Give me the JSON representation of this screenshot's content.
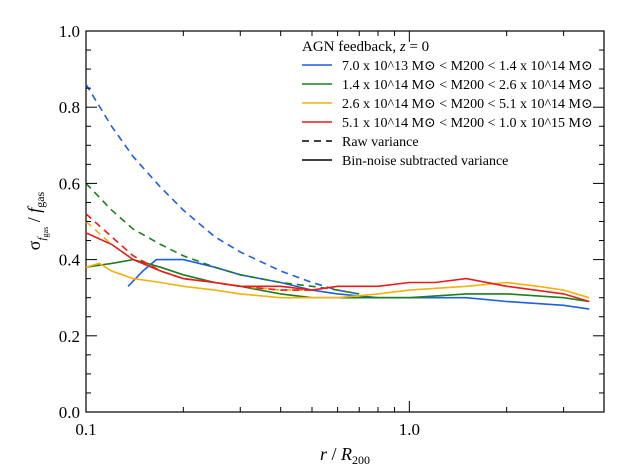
{
  "chart_data": {
    "type": "line",
    "xlabel": "r / R200",
    "ylabel": "σ f_gas / f_gas",
    "xscale": "log",
    "xlim": [
      0.1,
      4.0
    ],
    "ylim": [
      0.0,
      1.0
    ],
    "grid": false,
    "legend_position": "top-right",
    "x_ticks": [
      {
        "value": 0.1,
        "label": "0.1"
      },
      {
        "value": 1.0,
        "label": "1.0"
      }
    ],
    "y_ticks": [
      {
        "value": 0.0,
        "label": "0.0"
      },
      {
        "value": 0.2,
        "label": "0.2"
      },
      {
        "value": 0.4,
        "label": "0.4"
      },
      {
        "value": 0.6,
        "label": "0.6"
      },
      {
        "value": 0.8,
        "label": "0.8"
      },
      {
        "value": 1.0,
        "label": "1.0"
      }
    ],
    "legend_title": "AGN feedback, z = 0",
    "series": [
      {
        "name": "7.0 x 10^13 M⊙ < M200 < 1.4 x 10^14 M⊙",
        "color": "#1f5fe0",
        "dashed": {
          "x": [
            0.1,
            0.12,
            0.14,
            0.17,
            0.2,
            0.25,
            0.3,
            0.4,
            0.5,
            0.6,
            0.7
          ],
          "y": [
            0.86,
            0.75,
            0.67,
            0.59,
            0.53,
            0.46,
            0.42,
            0.37,
            0.34,
            0.32,
            0.31
          ]
        },
        "solid": {
          "x": [
            0.135,
            0.15,
            0.165,
            0.2,
            0.25,
            0.3,
            0.4,
            0.5,
            0.6,
            0.8,
            1.0,
            1.5,
            2.0,
            3.0,
            3.6
          ],
          "y": [
            0.33,
            0.37,
            0.4,
            0.4,
            0.38,
            0.36,
            0.34,
            0.32,
            0.31,
            0.3,
            0.3,
            0.3,
            0.29,
            0.28,
            0.27
          ]
        }
      },
      {
        "name": "1.4 x 10^14 M⊙ < M200 < 2.6 x 10^14 M⊙",
        "color": "#1e7d1e",
        "dashed": {
          "x": [
            0.1,
            0.12,
            0.14,
            0.17,
            0.2,
            0.25,
            0.3,
            0.4,
            0.5,
            0.6,
            0.7
          ],
          "y": [
            0.6,
            0.53,
            0.48,
            0.44,
            0.41,
            0.38,
            0.36,
            0.34,
            0.33,
            0.32,
            0.31
          ]
        },
        "solid": {
          "x": [
            0.1,
            0.12,
            0.14,
            0.17,
            0.2,
            0.25,
            0.3,
            0.4,
            0.5,
            0.6,
            0.8,
            1.0,
            1.5,
            2.0,
            3.0,
            3.6
          ],
          "y": [
            0.38,
            0.39,
            0.4,
            0.38,
            0.36,
            0.34,
            0.33,
            0.31,
            0.3,
            0.3,
            0.3,
            0.3,
            0.31,
            0.31,
            0.3,
            0.29
          ]
        }
      },
      {
        "name": "2.6 x 10^14 M⊙ < M200 < 5.1 x 10^14 M⊙",
        "color": "#f2b10d",
        "dashed": {
          "x": [
            0.1,
            0.12,
            0.14,
            0.17,
            0.2,
            0.25,
            0.3,
            0.4,
            0.5
          ],
          "y": [
            0.5,
            0.44,
            0.4,
            0.37,
            0.35,
            0.34,
            0.33,
            0.32,
            0.32
          ]
        },
        "solid": {
          "x": [
            0.1,
            0.11,
            0.12,
            0.14,
            0.17,
            0.2,
            0.25,
            0.3,
            0.4,
            0.5,
            0.6,
            0.8,
            1.0,
            1.5,
            2.0,
            2.5,
            3.0,
            3.6
          ],
          "y": [
            0.38,
            0.39,
            0.37,
            0.35,
            0.34,
            0.33,
            0.32,
            0.31,
            0.3,
            0.3,
            0.3,
            0.31,
            0.32,
            0.33,
            0.34,
            0.33,
            0.32,
            0.3
          ]
        }
      },
      {
        "name": "5.1 x 10^14 M⊙ < M200 < 1.0 x 10^15 M⊙",
        "color": "#e81c1c",
        "dashed": {
          "x": [
            0.1,
            0.12,
            0.14,
            0.17,
            0.2,
            0.25,
            0.3,
            0.4,
            0.5
          ],
          "y": [
            0.52,
            0.46,
            0.41,
            0.37,
            0.35,
            0.34,
            0.33,
            0.32,
            0.32
          ]
        },
        "solid": {
          "x": [
            0.1,
            0.12,
            0.14,
            0.17,
            0.2,
            0.25,
            0.3,
            0.4,
            0.5,
            0.6,
            0.8,
            1.0,
            1.2,
            1.5,
            2.0,
            3.0,
            3.6
          ],
          "y": [
            0.47,
            0.44,
            0.4,
            0.37,
            0.35,
            0.34,
            0.33,
            0.33,
            0.32,
            0.33,
            0.33,
            0.34,
            0.34,
            0.35,
            0.33,
            0.31,
            0.29
          ]
        }
      }
    ],
    "style_legend": [
      {
        "style": "dashed",
        "label": "Raw variance"
      },
      {
        "style": "solid",
        "label": "Bin-noise subtracted variance"
      }
    ]
  }
}
